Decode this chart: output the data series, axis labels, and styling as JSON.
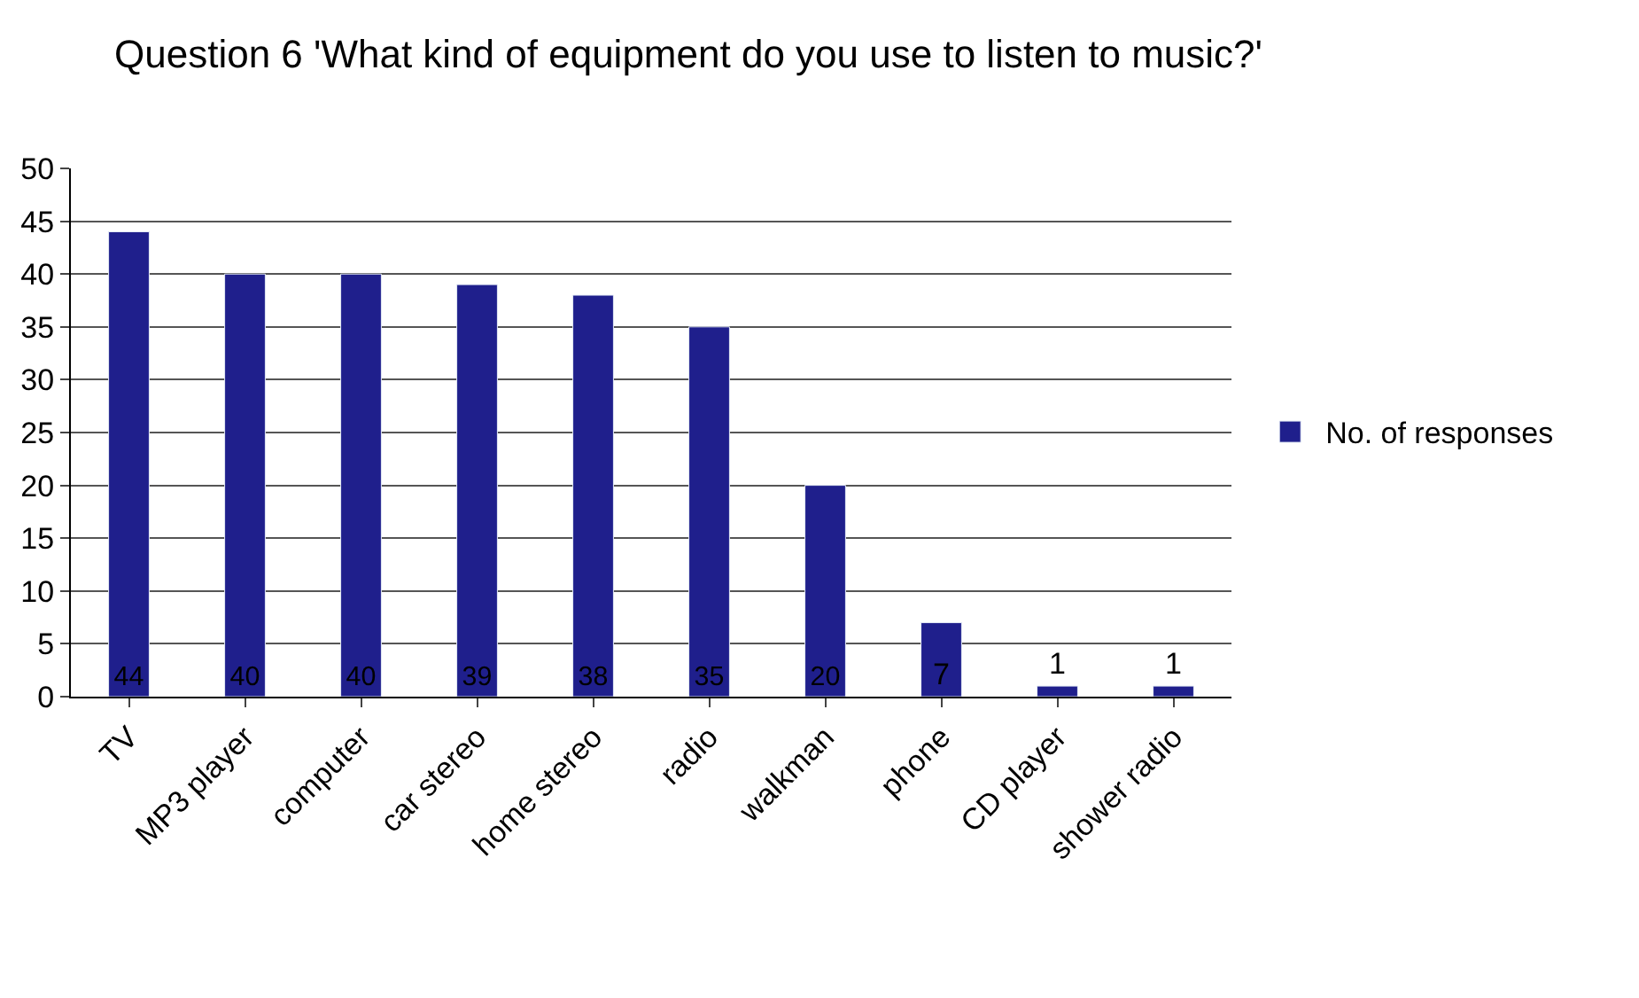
{
  "chart_data": {
    "type": "bar",
    "title": "Question 6 'What kind of equipment do you use to listen to music?'",
    "categories": [
      "TV",
      "MP3 player",
      "computer",
      "car stereo",
      "home stereo",
      "radio",
      "walkman",
      "phone",
      "CD player",
      "shower radio"
    ],
    "series": [
      {
        "name": "No. of responses",
        "color": "#1f1f8c",
        "values": [
          44,
          40,
          40,
          39,
          38,
          35,
          20,
          7,
          1,
          1
        ]
      }
    ],
    "ylim": [
      0,
      50
    ],
    "yticks": [
      0,
      5,
      10,
      15,
      20,
      25,
      30,
      35,
      40,
      45,
      50
    ],
    "grid": "y",
    "legend": "right",
    "data_labels": true
  }
}
